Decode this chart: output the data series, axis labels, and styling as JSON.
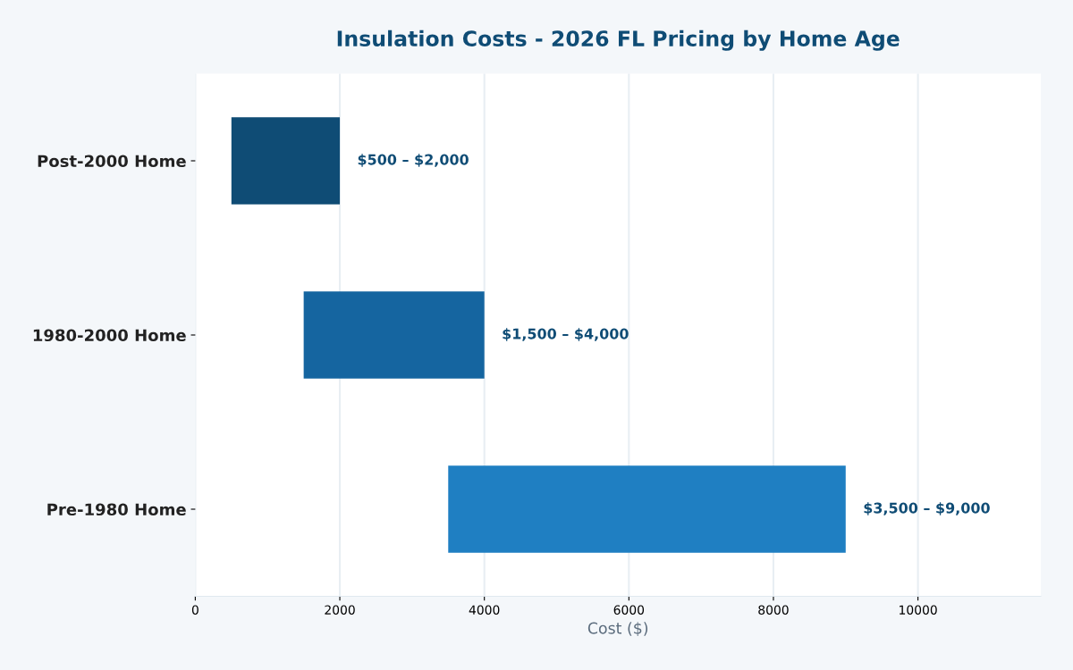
{
  "chart_data": {
    "type": "bar",
    "orientation": "horizontal",
    "title": "Insulation Costs - 2026 FL Pricing by Home Age",
    "xlabel": "Cost ($)",
    "categories": [
      "Post-2000 Home",
      "1980-2000 Home",
      "Pre-1980 Home"
    ],
    "base": [
      500,
      1500,
      3500
    ],
    "values": [
      1500,
      2500,
      5500
    ],
    "colors": [
      "#0f4c75",
      "#1565a0",
      "#1f7fc2"
    ],
    "annotations": [
      {
        "text": "$500 – $2,000",
        "x": 2000,
        "y": "Post-2000 Home"
      },
      {
        "text": "$1,500 – $4,000",
        "x": 4000,
        "y": "1980-2000 Home"
      },
      {
        "text": "$3,500 – $9,000",
        "x": 9000,
        "y": "Pre-1980 Home"
      }
    ],
    "xlim": [
      0,
      11700
    ],
    "xticks": [
      0,
      2000,
      4000,
      6000,
      8000,
      10000
    ],
    "grid": "x"
  }
}
